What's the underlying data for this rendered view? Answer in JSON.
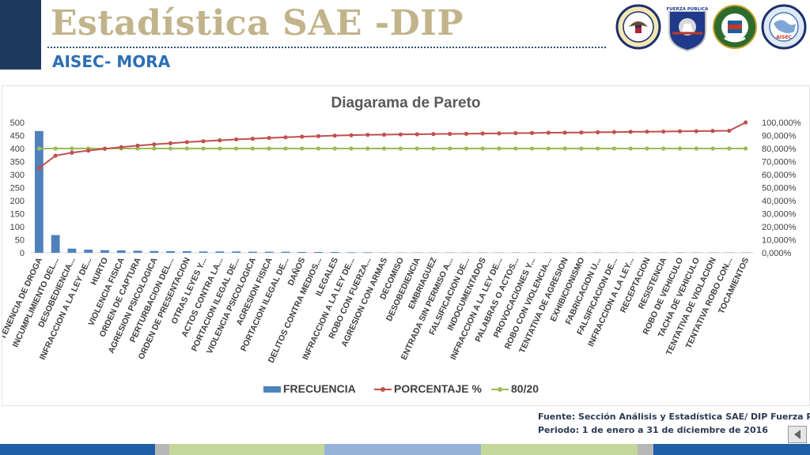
{
  "header": {
    "title": "Estadística SAE -DIP",
    "subtitle": "AISEC- MORA",
    "logos": [
      {
        "name": "us-embassy-seal",
        "text": "UNITED STATES OF AMERICA · EMBASSY"
      },
      {
        "name": "fuerza-publica-shield",
        "text": "FUERZA PÚBLICA"
      },
      {
        "name": "green-police-seal",
        "text": ""
      },
      {
        "name": "world-globe-seal",
        "text": "AISEC"
      }
    ]
  },
  "footer": {
    "source": "Fuente: Sección Análisis y Estadística SAE/ DIP Fuerza Pública",
    "period": "Periodo: 1 de enero a 31 de diciembre de 2016"
  },
  "colors": {
    "bar": "#4f81bd",
    "line_pct": "#c0504d",
    "line_8020": "#9bbb59",
    "title_gold": "#c2b48a",
    "subtitle_blue": "#2d6fb4",
    "header_navy": "#1f3a5f"
  },
  "chart_data": {
    "type": "bar",
    "title": "Diagarama de Pareto",
    "legend_position": "bottom",
    "grid": false,
    "y_left": {
      "min": 0,
      "max": 500,
      "step": 50
    },
    "y_right": {
      "min": 0,
      "max": 100,
      "step": 10,
      "format": "percent_3dec"
    },
    "categories": [
      "TENENCIA DE DROGA",
      "INCUMPLIMIENTO DEL...",
      "DESOBEDIENCIA...",
      "INFRACCION A LA LEY DE...",
      "HURTO",
      "VIOLENCIA FISICA",
      "ORDEN DE CAPTURA",
      "AGRESION PSICOLOGICA",
      "PERTURBACION DEL...",
      "ORDEN DE PRESENTACION",
      "OTRAS LEYES Y...",
      "ACTOS CONTRA LA...",
      "PORTACION ILEGAL DE...",
      "VIOLENCIA PSICOLOGICA",
      "AGRESION FISICA",
      "PORTACION ILEGAL DE...",
      "DAÑOS",
      "DELITOS CONTRA MEDIOS...",
      "ILEGALES",
      "INFRACCION A LA LEY DE...",
      "ROBO CON FUERZA...",
      "AGRESION CON ARMAS",
      "DECOMISO",
      "DESOBEDIENCIA",
      "EMBRIAGUEZ",
      "ENTRADA SIN PERMISO A...",
      "FALSIFICACION DE...",
      "INDOCUMENTADOS",
      "INFRACCION A LA LEY DE...",
      "PALABRAS O ACTOS...",
      "PROVOCACIONES Y...",
      "ROBO CON VIOLENCIA...",
      "TENTATIVA DE AGRESION",
      "EXHIBICIONISMO",
      "FABRICACION U...",
      "FALSIFICACION DE...",
      "INFRACCION A LA LEY...",
      "RECEPTACION",
      "RESISTENCIA",
      "ROBO DE VEHICULO",
      "TACHA DE VEHICULO",
      "TENTATIVA DE VIOLACION",
      "TENTATIVA ROBO CON...",
      "TOCAMIENTOS"
    ],
    "series": [
      {
        "name": "FRECUENCIA",
        "type": "bar",
        "axis": "left",
        "values": [
          467,
          68,
          16,
          12,
          10,
          9,
          8,
          7,
          6,
          6,
          5,
          5,
          5,
          4,
          4,
          4,
          3,
          3,
          3,
          2,
          2,
          1,
          1,
          1,
          1,
          1,
          1,
          1,
          1,
          1,
          1,
          1,
          1,
          1,
          1,
          1,
          1,
          1,
          1,
          1,
          1,
          1,
          1,
          1
        ]
      },
      {
        "name": "PORCENTAJE %",
        "type": "line",
        "axis": "right",
        "values": [
          65.0,
          74.5,
          76.8,
          78.4,
          79.8,
          81.1,
          82.2,
          83.2,
          84.0,
          84.9,
          85.6,
          86.3,
          87.0,
          87.5,
          88.1,
          88.6,
          89.1,
          89.5,
          89.9,
          90.2,
          90.5,
          90.6,
          90.8,
          90.9,
          91.1,
          91.2,
          91.3,
          91.5,
          91.6,
          91.8,
          91.9,
          92.1,
          92.2,
          92.3,
          92.5,
          92.6,
          92.8,
          92.9,
          93.0,
          93.2,
          93.3,
          93.5,
          93.6,
          100.0
        ]
      },
      {
        "name": "80/20",
        "type": "line",
        "axis": "right",
        "values": [
          80,
          80,
          80,
          80,
          80,
          80,
          80,
          80,
          80,
          80,
          80,
          80,
          80,
          80,
          80,
          80,
          80,
          80,
          80,
          80,
          80,
          80,
          80,
          80,
          80,
          80,
          80,
          80,
          80,
          80,
          80,
          80,
          80,
          80,
          80,
          80,
          80,
          80,
          80,
          80,
          80,
          80,
          80,
          80
        ]
      }
    ]
  }
}
